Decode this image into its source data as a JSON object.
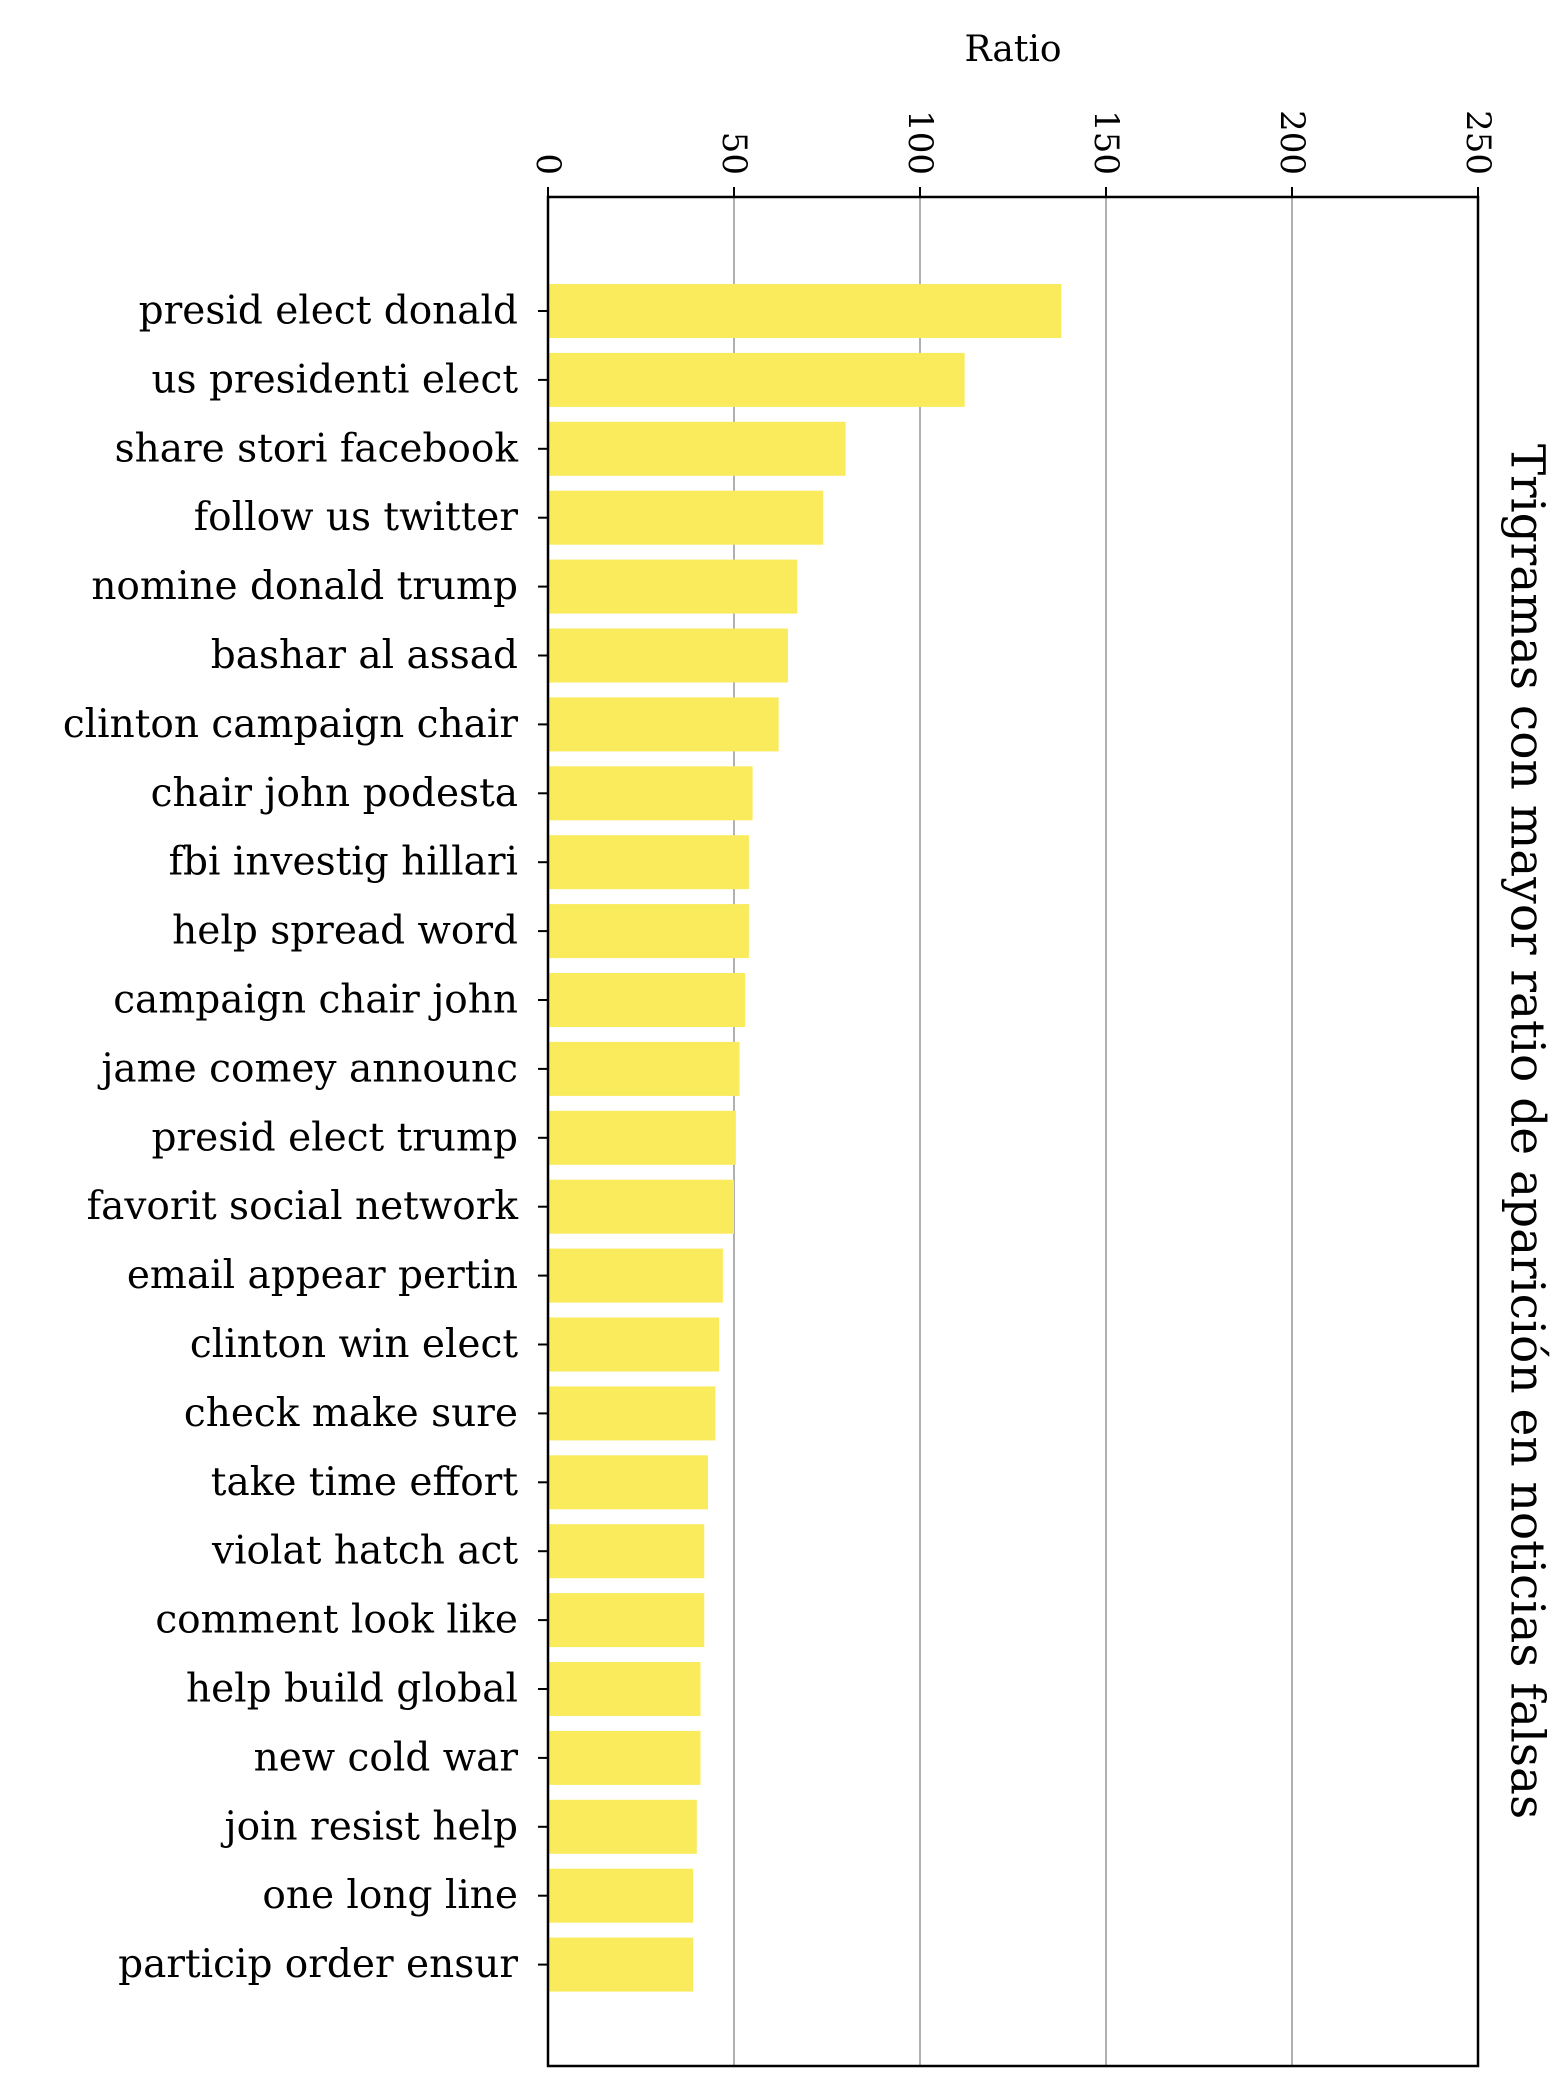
{
  "chart_data": {
    "type": "bar",
    "orientation": "horizontal",
    "title": "Trigramas con mayor ratio de aparición en noticias falsas",
    "xlabel": "Ratio",
    "ylabel": "",
    "xlim": [
      0,
      250
    ],
    "xticks": [
      0,
      50,
      100,
      150,
      200,
      250
    ],
    "xtick_labels": [
      "0",
      "50",
      "100",
      "150",
      "200",
      "250"
    ],
    "grid": "vertical",
    "bar_color": "#f9eb5c",
    "categories": [
      "presid elect donald",
      "us presidenti elect",
      "share stori facebook",
      "follow us twitter",
      "nomine donald trump",
      "bashar al assad",
      "clinton campaign chair",
      "chair john podesta",
      "fbi investig hillari",
      "help spread word",
      "campaign chair john",
      "jame comey announc",
      "presid elect trump",
      "favorit social network",
      "email appear pertin",
      "clinton win elect",
      "check make sure",
      "take time effort",
      "violat hatch act",
      "comment look like",
      "help build global",
      "new cold war",
      "join resist help",
      "one long line",
      "particip order ensur"
    ],
    "values": [
      138,
      112,
      80,
      74,
      67,
      64.5,
      62,
      55,
      54,
      54,
      53,
      51.5,
      50.5,
      50,
      47,
      46,
      45,
      43,
      42,
      42,
      41,
      41,
      40,
      39,
      39
    ]
  }
}
